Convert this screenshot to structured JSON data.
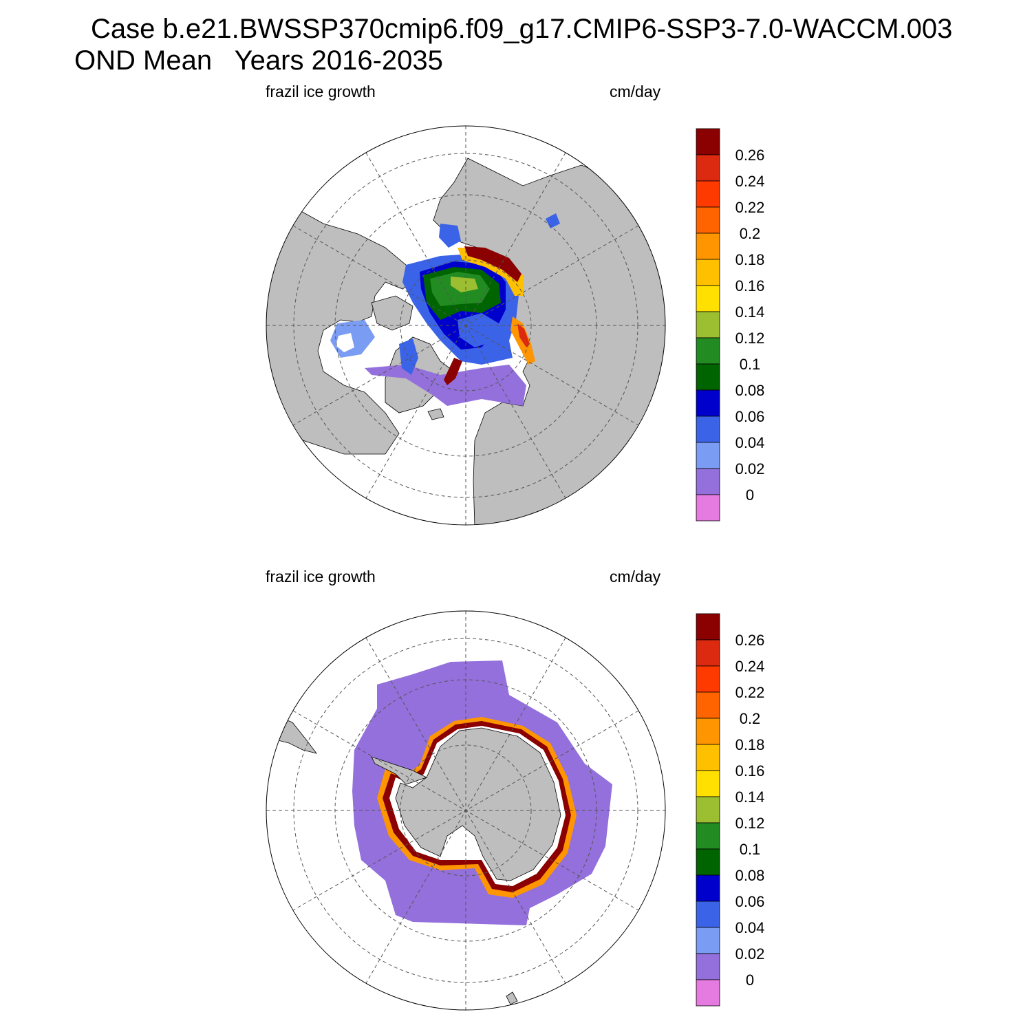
{
  "title": {
    "case_line": "Case b.e21.BWSSP370cmip6.f09_g17.CMIP6-SSP3-7.0-WACCM.003",
    "period_line": "OND Mean   Years 2016-2035"
  },
  "panels": [
    {
      "id": "north",
      "hemisphere": "Northern Hemisphere",
      "left_label": "frazil ice growth",
      "right_label": "cm/day"
    },
    {
      "id": "south",
      "hemisphere": "Southern Hemisphere",
      "left_label": "frazil ice growth",
      "right_label": "cm/day"
    }
  ],
  "colorbar": {
    "tick_labels": [
      "0.26",
      "0.24",
      "0.22",
      "0.2",
      "0.18",
      "0.16",
      "0.14",
      "0.12",
      "0.1",
      "0.08",
      "0.06",
      "0.04",
      "0.02",
      "0"
    ],
    "colors_top_to_bottom": [
      "#8b0000",
      "#dc2a10",
      "#ff3a00",
      "#ff6400",
      "#ff9500",
      "#ffc000",
      "#ffe000",
      "#9bbf30",
      "#228b22",
      "#006400",
      "#0000cd",
      "#3a63e8",
      "#7a9cf2",
      "#9370db",
      "#e57ae0"
    ]
  },
  "map_colors": {
    "land": "#bebebe",
    "ocean_no_data": "#ffffff",
    "grid": "#555555"
  },
  "chart_data": {
    "type": "polar_stereographic_contour_map",
    "variable": "frazil ice growth",
    "units": "cm/day",
    "levels": [
      0,
      0.02,
      0.04,
      0.06,
      0.08,
      0.1,
      0.12,
      0.14,
      0.16,
      0.18,
      0.2,
      0.22,
      0.24,
      0.26
    ]
  }
}
